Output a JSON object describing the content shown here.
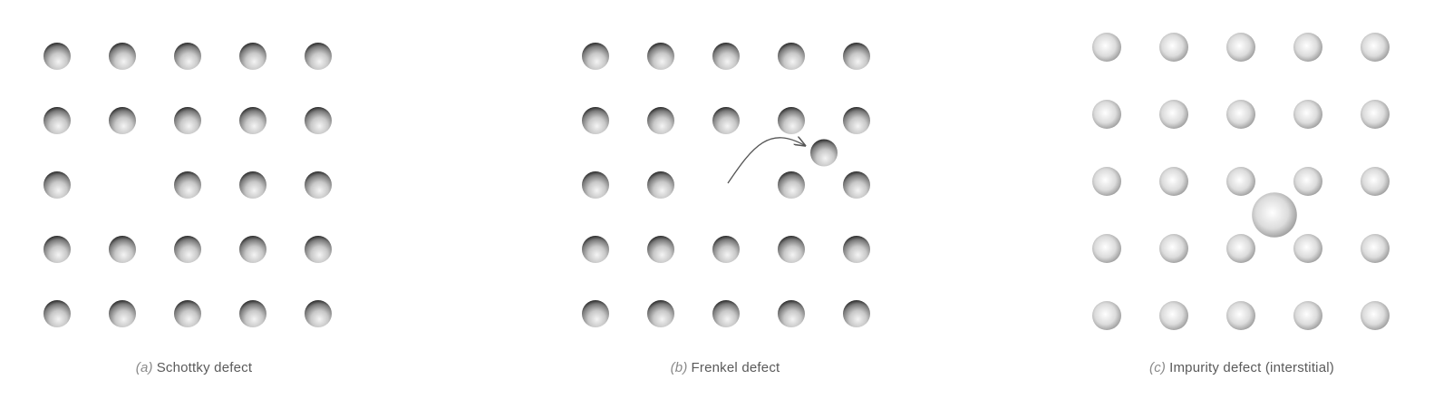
{
  "colors": {
    "background": "#ffffff",
    "atom_shadow": "#2a2a2a",
    "atom_mid": "#9a9a9a",
    "atom_light": "#f4f4f4",
    "arrow": "#555555",
    "caption": "#5a5a5a"
  },
  "panels": [
    {
      "id": "schottky",
      "tag": "(a)",
      "title": "Schottky defect",
      "grid_rows": 5,
      "grid_cols": 5,
      "vacancies": [
        [
          2,
          1
        ]
      ],
      "displaced_atom": null,
      "interstitial_impurity": null
    },
    {
      "id": "frenkel",
      "tag": "(b)",
      "title": "Frenkel defect",
      "grid_rows": 5,
      "grid_cols": 5,
      "vacancies": [
        [
          2,
          2
        ]
      ],
      "displaced_atom": {
        "from": [
          2,
          2
        ],
        "to_between": [
          [
            1,
            3
          ],
          [
            2,
            4
          ]
        ]
      },
      "interstitial_impurity": null
    },
    {
      "id": "impurity",
      "tag": "(c)",
      "title": "Impurity defect (interstitial)",
      "grid_rows": 5,
      "grid_cols": 5,
      "vacancies": [],
      "displaced_atom": null,
      "interstitial_impurity": {
        "between": [
          [
            2,
            2
          ],
          [
            3,
            3
          ]
        ]
      }
    }
  ]
}
